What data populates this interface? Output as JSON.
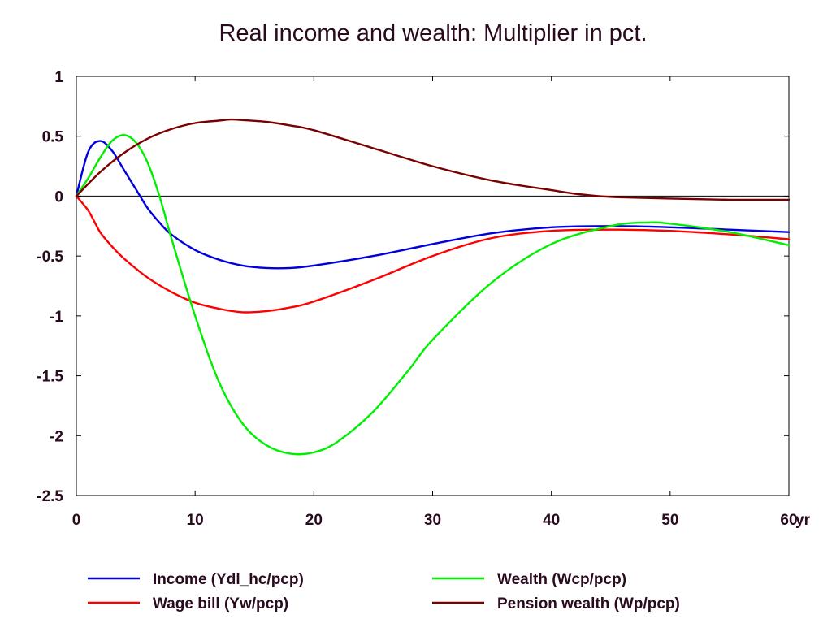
{
  "chart_data": {
    "type": "line",
    "title": "Real income and wealth: Multiplier in pct.",
    "x_unit_label": "yr",
    "xlim": [
      0,
      60
    ],
    "ylim": [
      -2.5,
      1
    ],
    "x_ticks": [
      0,
      10,
      20,
      30,
      40,
      50,
      60
    ],
    "x_tick_labels": [
      "0",
      "10",
      "20",
      "30",
      "40",
      "50",
      "60"
    ],
    "y_ticks": [
      1,
      0.5,
      0,
      -0.5,
      -1,
      -1.5,
      -2,
      -2.5
    ],
    "y_tick_labels": [
      "1",
      "0.5",
      "0",
      "-0.5",
      "-1",
      "-1.5",
      "-2",
      "-2.5"
    ],
    "zero_line": true,
    "grid": false,
    "legend_position": "bottom",
    "series": [
      {
        "name": "Income (Ydl_hc/pcp)",
        "color": "#0000dd",
        "x": [
          0,
          1,
          2,
          3,
          4,
          5,
          6,
          7,
          8,
          10,
          12,
          14,
          16,
          18,
          20,
          25,
          30,
          35,
          40,
          45,
          50,
          55,
          60
        ],
        "values": [
          0,
          0.37,
          0.46,
          0.38,
          0.22,
          0.06,
          -0.1,
          -0.22,
          -0.32,
          -0.45,
          -0.53,
          -0.58,
          -0.6,
          -0.6,
          -0.58,
          -0.5,
          -0.4,
          -0.31,
          -0.26,
          -0.25,
          -0.26,
          -0.28,
          -0.3
        ]
      },
      {
        "name": "Wage bill (Yw/pcp)",
        "color": "#ff0000",
        "x": [
          0,
          1,
          2,
          3,
          4,
          6,
          8,
          10,
          12,
          14,
          16,
          18,
          20,
          25,
          30,
          35,
          40,
          45,
          50,
          55,
          60
        ],
        "values": [
          0,
          -0.12,
          -0.3,
          -0.42,
          -0.52,
          -0.68,
          -0.8,
          -0.89,
          -0.94,
          -0.97,
          -0.96,
          -0.93,
          -0.88,
          -0.7,
          -0.5,
          -0.35,
          -0.29,
          -0.28,
          -0.29,
          -0.32,
          -0.36
        ]
      },
      {
        "name": "Wealth (Wcp/pcp)",
        "color": "#00ee00",
        "x": [
          0,
          1,
          2,
          3,
          4,
          5,
          6,
          7,
          8,
          10,
          12,
          14,
          16,
          18,
          20,
          22,
          25,
          28,
          30,
          35,
          40,
          45,
          48,
          50,
          55,
          60
        ],
        "values": [
          0,
          0.15,
          0.32,
          0.46,
          0.51,
          0.45,
          0.28,
          0.0,
          -0.35,
          -1.0,
          -1.55,
          -1.9,
          -2.08,
          -2.15,
          -2.14,
          -2.05,
          -1.8,
          -1.45,
          -1.2,
          -0.72,
          -0.4,
          -0.25,
          -0.22,
          -0.23,
          -0.3,
          -0.41
        ]
      },
      {
        "name": "Pension wealth (Wp/pcp)",
        "color": "#7a0000",
        "x": [
          0,
          2,
          4,
          6,
          8,
          10,
          12,
          13,
          14,
          16,
          18,
          20,
          25,
          30,
          35,
          40,
          42,
          44,
          46,
          50,
          55,
          60
        ],
        "values": [
          0,
          0.2,
          0.36,
          0.48,
          0.56,
          0.61,
          0.63,
          0.64,
          0.635,
          0.62,
          0.59,
          0.55,
          0.4,
          0.25,
          0.13,
          0.05,
          0.02,
          0.0,
          -0.01,
          -0.02,
          -0.03,
          -0.03
        ]
      }
    ]
  }
}
